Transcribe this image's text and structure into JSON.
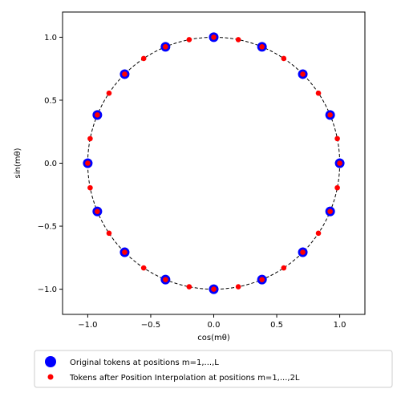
{
  "chart_data": {
    "type": "scatter",
    "title": "",
    "xlabel": "cos(mθ)",
    "ylabel": "sin(mθ)",
    "xlim": [
      -1.2,
      1.2
    ],
    "ylim": [
      -1.2,
      1.2
    ],
    "xticks": [
      -1.0,
      -0.5,
      0.0,
      0.5,
      1.0
    ],
    "yticks": [
      -1.0,
      -0.5,
      0.0,
      0.5,
      1.0
    ],
    "xtick_labels": [
      "−1.0",
      "−0.5",
      "0.0",
      "0.5",
      "1.0"
    ],
    "ytick_labels": [
      "−1.0",
      "−0.5",
      "0.0",
      "0.5",
      "1.0"
    ],
    "grid": false,
    "legend_position": "below",
    "reference_circle": {
      "radius": 1.0,
      "style": "dashed",
      "color": "#000000"
    },
    "series": [
      {
        "name": "Original tokens at positions m=1,...,L",
        "color": "#0000ff",
        "marker": "large-circle",
        "points": [
          [
            1.0,
            0.0
          ],
          [
            0.924,
            0.383
          ],
          [
            0.707,
            0.707
          ],
          [
            0.383,
            0.924
          ],
          [
            0.0,
            1.0
          ],
          [
            -0.383,
            0.924
          ],
          [
            -0.707,
            0.707
          ],
          [
            -0.924,
            0.383
          ],
          [
            -1.0,
            0.0
          ],
          [
            -0.924,
            -0.383
          ],
          [
            -0.707,
            -0.707
          ],
          [
            -0.383,
            -0.924
          ],
          [
            0.0,
            -1.0
          ],
          [
            0.383,
            -0.924
          ],
          [
            0.707,
            -0.707
          ],
          [
            0.924,
            -0.383
          ]
        ]
      },
      {
        "name": "Tokens after Position Interpolation at positions m=1,...,2L",
        "color": "#ff0000",
        "marker": "small-circle",
        "points": [
          [
            1.0,
            0.0
          ],
          [
            0.981,
            0.195
          ],
          [
            0.924,
            0.383
          ],
          [
            0.831,
            0.556
          ],
          [
            0.707,
            0.707
          ],
          [
            0.556,
            0.831
          ],
          [
            0.383,
            0.924
          ],
          [
            0.195,
            0.981
          ],
          [
            0.0,
            1.0
          ],
          [
            -0.195,
            0.981
          ],
          [
            -0.383,
            0.924
          ],
          [
            -0.556,
            0.831
          ],
          [
            -0.707,
            0.707
          ],
          [
            -0.831,
            0.556
          ],
          [
            -0.924,
            0.383
          ],
          [
            -0.981,
            0.195
          ],
          [
            -1.0,
            0.0
          ],
          [
            -0.981,
            -0.195
          ],
          [
            -0.924,
            -0.383
          ],
          [
            -0.831,
            -0.556
          ],
          [
            -0.707,
            -0.707
          ],
          [
            -0.556,
            -0.831
          ],
          [
            -0.383,
            -0.924
          ],
          [
            -0.195,
            -0.981
          ],
          [
            0.0,
            -1.0
          ],
          [
            0.195,
            -0.981
          ],
          [
            0.383,
            -0.924
          ],
          [
            0.556,
            -0.831
          ],
          [
            0.707,
            -0.707
          ],
          [
            0.831,
            -0.556
          ],
          [
            0.924,
            -0.383
          ],
          [
            0.981,
            -0.195
          ]
        ]
      }
    ]
  }
}
